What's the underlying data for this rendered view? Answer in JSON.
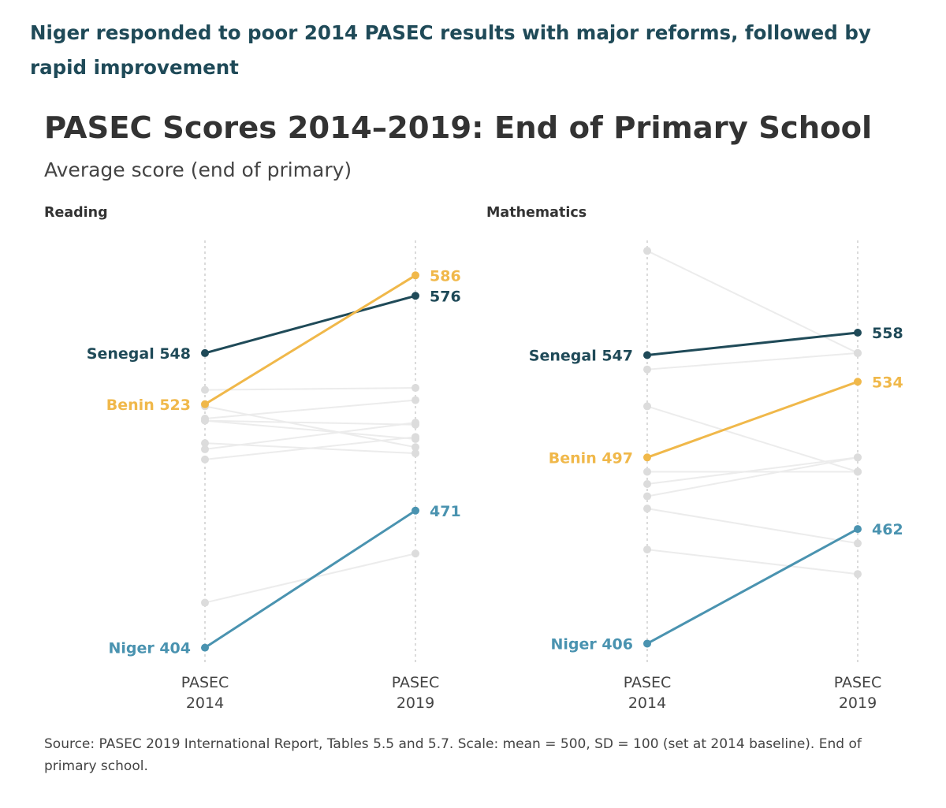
{
  "header": {
    "headline": "Niger responded to poor 2014 PASEC results with major reforms, followed by rapid improvement"
  },
  "chart_data": {
    "type": "slope",
    "title": "PASEC Scores 2014–2019: End of Primary School",
    "subtitle": "Average score (end of primary)",
    "x_labels": [
      {
        "line1": "PASEC",
        "line2": "2014"
      },
      {
        "line1": "PASEC",
        "line2": "2019"
      }
    ],
    "colors": {
      "Senegal": "#1f4a58",
      "Benin": "#f0b84a",
      "Niger": "#4a93b0",
      "other": "#dcdcdc"
    },
    "panels": [
      {
        "id": "reading",
        "title": "Reading",
        "ylim": [
          395,
          605
        ],
        "highlight": [
          {
            "country": "Senegal",
            "v2014": 548,
            "v2019": 576
          },
          {
            "country": "Benin",
            "v2014": 523,
            "v2019": 586
          },
          {
            "country": "Niger",
            "v2014": 404,
            "v2019": 471
          }
        ],
        "others": [
          [
            530,
            531
          ],
          [
            516,
            525
          ],
          [
            515,
            513
          ],
          [
            515,
            506
          ],
          [
            522,
            502
          ],
          [
            501,
            514
          ],
          [
            496,
            507
          ],
          [
            504,
            499
          ],
          [
            426,
            450
          ]
        ]
      },
      {
        "id": "mathematics",
        "title": "Mathematics",
        "ylim": [
          395,
          605
        ],
        "highlight": [
          {
            "country": "Senegal",
            "v2014": 547,
            "v2019": 558
          },
          {
            "country": "Benin",
            "v2014": 497,
            "v2019": 534
          },
          {
            "country": "Niger",
            "v2014": 406,
            "v2019": 462
          }
        ],
        "others": [
          [
            598,
            548
          ],
          [
            540,
            548
          ],
          [
            522,
            490
          ],
          [
            490,
            490
          ],
          [
            484,
            497
          ],
          [
            478,
            497
          ],
          [
            472,
            455
          ],
          [
            452,
            440
          ]
        ]
      }
    ]
  },
  "footer": {
    "source": "Source: PASEC 2019 International Report, Tables 5.5 and 5.7. Scale: mean = 500, SD = 100 (set at 2014 baseline). End of primary school."
  }
}
